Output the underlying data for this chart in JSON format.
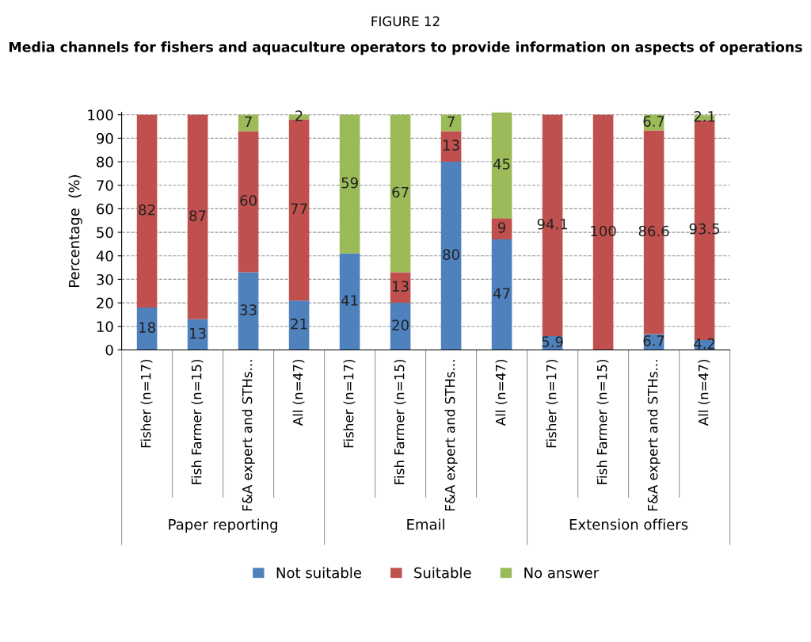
{
  "chart_data": {
    "type": "bar",
    "stacked": true,
    "title": "FIGURE 12",
    "subtitle": "Media channels for fishers and aquaculture operators to provide information on aspects of operations",
    "ylabel": "Percentage  (%)",
    "categories": [
      "Fisher (n=17)",
      "Fish Farmer (n=15)",
      "F&A expert and STHs...",
      "All (n=47)",
      "Fisher (n=17)",
      "Fish Farmer (n=15)",
      "F&A expert and STHs...",
      "All (n=47)",
      "Fisher (n=17)",
      "Fish Farmer (n=15)",
      "F&A expert and STHs...",
      "All (n=47)"
    ],
    "annotations": [
      "Paper reporting",
      "Email",
      "Extension offiers"
    ],
    "series": [
      {
        "name": "Not suitable",
        "color": "#4f81bd",
        "values": [
          18,
          13,
          33,
          21,
          41,
          20,
          80,
          47,
          5.9,
          0,
          6.7,
          4.2
        ],
        "value_labels": [
          "18",
          "13",
          "33",
          "21",
          "41",
          "20",
          "80",
          "47",
          "5.9",
          null,
          "6.7",
          "4.2"
        ]
      },
      {
        "name": "Suitable",
        "color": "#c0504d",
        "values": [
          82,
          87,
          60,
          77,
          0,
          13,
          13,
          9,
          94.1,
          100,
          86.6,
          93.5
        ],
        "value_labels": [
          "82",
          "87",
          "60",
          "77",
          null,
          "13",
          "13",
          "9",
          "94.1",
          "100",
          "86.6",
          "93.5"
        ]
      },
      {
        "name": "No answer",
        "color": "#9bbb59",
        "values": [
          0,
          0,
          7,
          2,
          59,
          67,
          7,
          45,
          0,
          0,
          6.7,
          2.1
        ],
        "value_labels": [
          null,
          null,
          "7",
          "2",
          "59",
          "67",
          "7",
          "45",
          null,
          null,
          "6.7",
          "2.1"
        ]
      }
    ],
    "ylim": [
      0,
      101
    ],
    "yticks": [
      0,
      10,
      20,
      30,
      40,
      50,
      60,
      70,
      80,
      90,
      100
    ],
    "grid": "y",
    "legend": "bottom"
  }
}
